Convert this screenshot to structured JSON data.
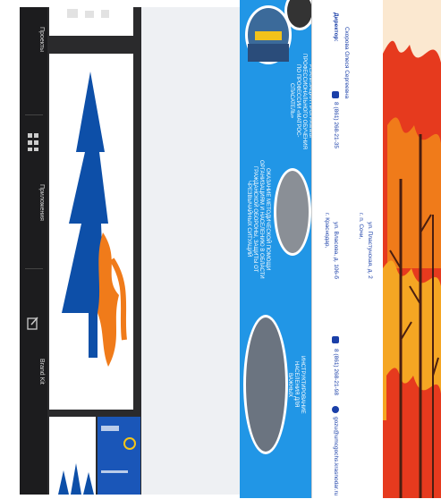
{
  "sidebar": {
    "items": [
      {
        "label": "Проекты",
        "icon": "folder-icon"
      },
      {
        "label": "Приложения",
        "icon": "grid-icon"
      },
      {
        "label": "Brand Kit",
        "icon": "edit-icon"
      }
    ]
  },
  "brochure": {
    "left_panel_captions": [
      "РЕАЛИЗАЦИЯ ПРОГРАММЫ ПРОФЕССИОНАЛЬНОГО ОБУЧЕНИЯ ПО ПРОФЕССИИ «МАТРОС-СПАСАТЕЛЬ»",
      "ОКАЗАНИЕ МЕТОДИЧЕСКОЙ ПОМОЩИ ОРГАНИЗАЦИЯМ И НАСЕЛЕНИЮ В ОБЛАСТИ ГРАЖДАНСКОЙ ОБОРОНЫ, ЗАЩИТЫ ОТ ЧРЕЗВЫЧАЙНЫХ СИТУАЦИЙ",
      "ИНСТРУКТИРОВАНИЕ НАСЕЛЕНИЯ ДЛЯ ВАЖНЫХ"
    ],
    "contacts": {
      "director_title": "Директор:",
      "director_name": "Скорова Олеся Сергеевна",
      "phone_1": "8 (861) 268-21-35",
      "city_1": "г. Краснодар,",
      "street_1": "ул. Власова, д. 106-б",
      "city_2": "г. п. Сочи,",
      "street_2": "ул. Пластунская, д. 2",
      "phone_2": "8 (861) 268-21-98",
      "email": "gozu@umcgochs.krasnodar.ru"
    }
  },
  "colors": {
    "sidebar_bg": "#1c1c1e",
    "brochure_blue": "#2196e6",
    "logo_blue": "#0d4fa8",
    "logo_orange": "#f07b1a",
    "fire_red": "#e63a1e"
  }
}
